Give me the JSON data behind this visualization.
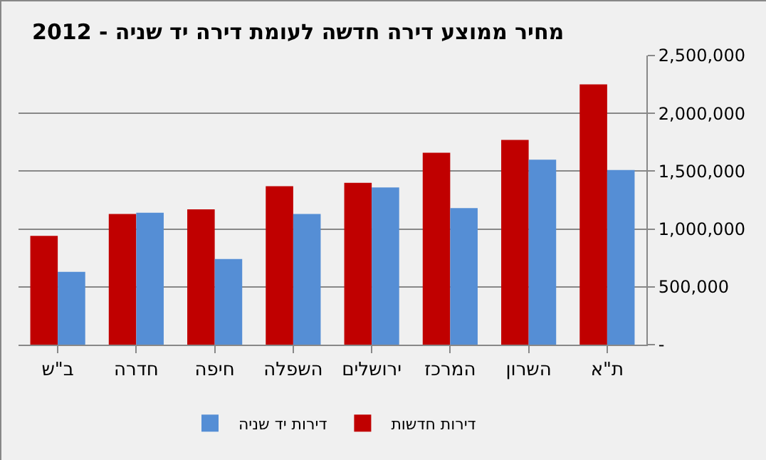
{
  "chart_data": {
    "type": "bar",
    "title": "מחיר ממוצע דירה חדשה לעומת דירה יד שניה - 2012",
    "categories": [
      "ב\"ש",
      "חדרה",
      "חיפה",
      "השפלה",
      "ירושלים",
      "המרכז",
      "השרון",
      "ת\"א"
    ],
    "series": [
      {
        "name": "דירות חדשות",
        "color": "#c00000",
        "values": [
          940000,
          1130000,
          1170000,
          1370000,
          1400000,
          1660000,
          1770000,
          2250000
        ]
      },
      {
        "name": "דירות יד שניה",
        "color": "#558ed5",
        "values": [
          630000,
          1140000,
          740000,
          1130000,
          1360000,
          1180000,
          1600000,
          1510000
        ]
      }
    ],
    "ylim": [
      0,
      2500000
    ],
    "yticks": [
      {
        "value": 0,
        "label": "-"
      },
      {
        "value": 500000,
        "label": "500,000"
      },
      {
        "value": 1000000,
        "label": "1,000,000"
      },
      {
        "value": 1500000,
        "label": "1,500,000"
      },
      {
        "value": 2000000,
        "label": "2,000,000"
      },
      {
        "value": 2500000,
        "label": "2,500,000"
      }
    ],
    "grid": "y",
    "legend": "bottom"
  }
}
